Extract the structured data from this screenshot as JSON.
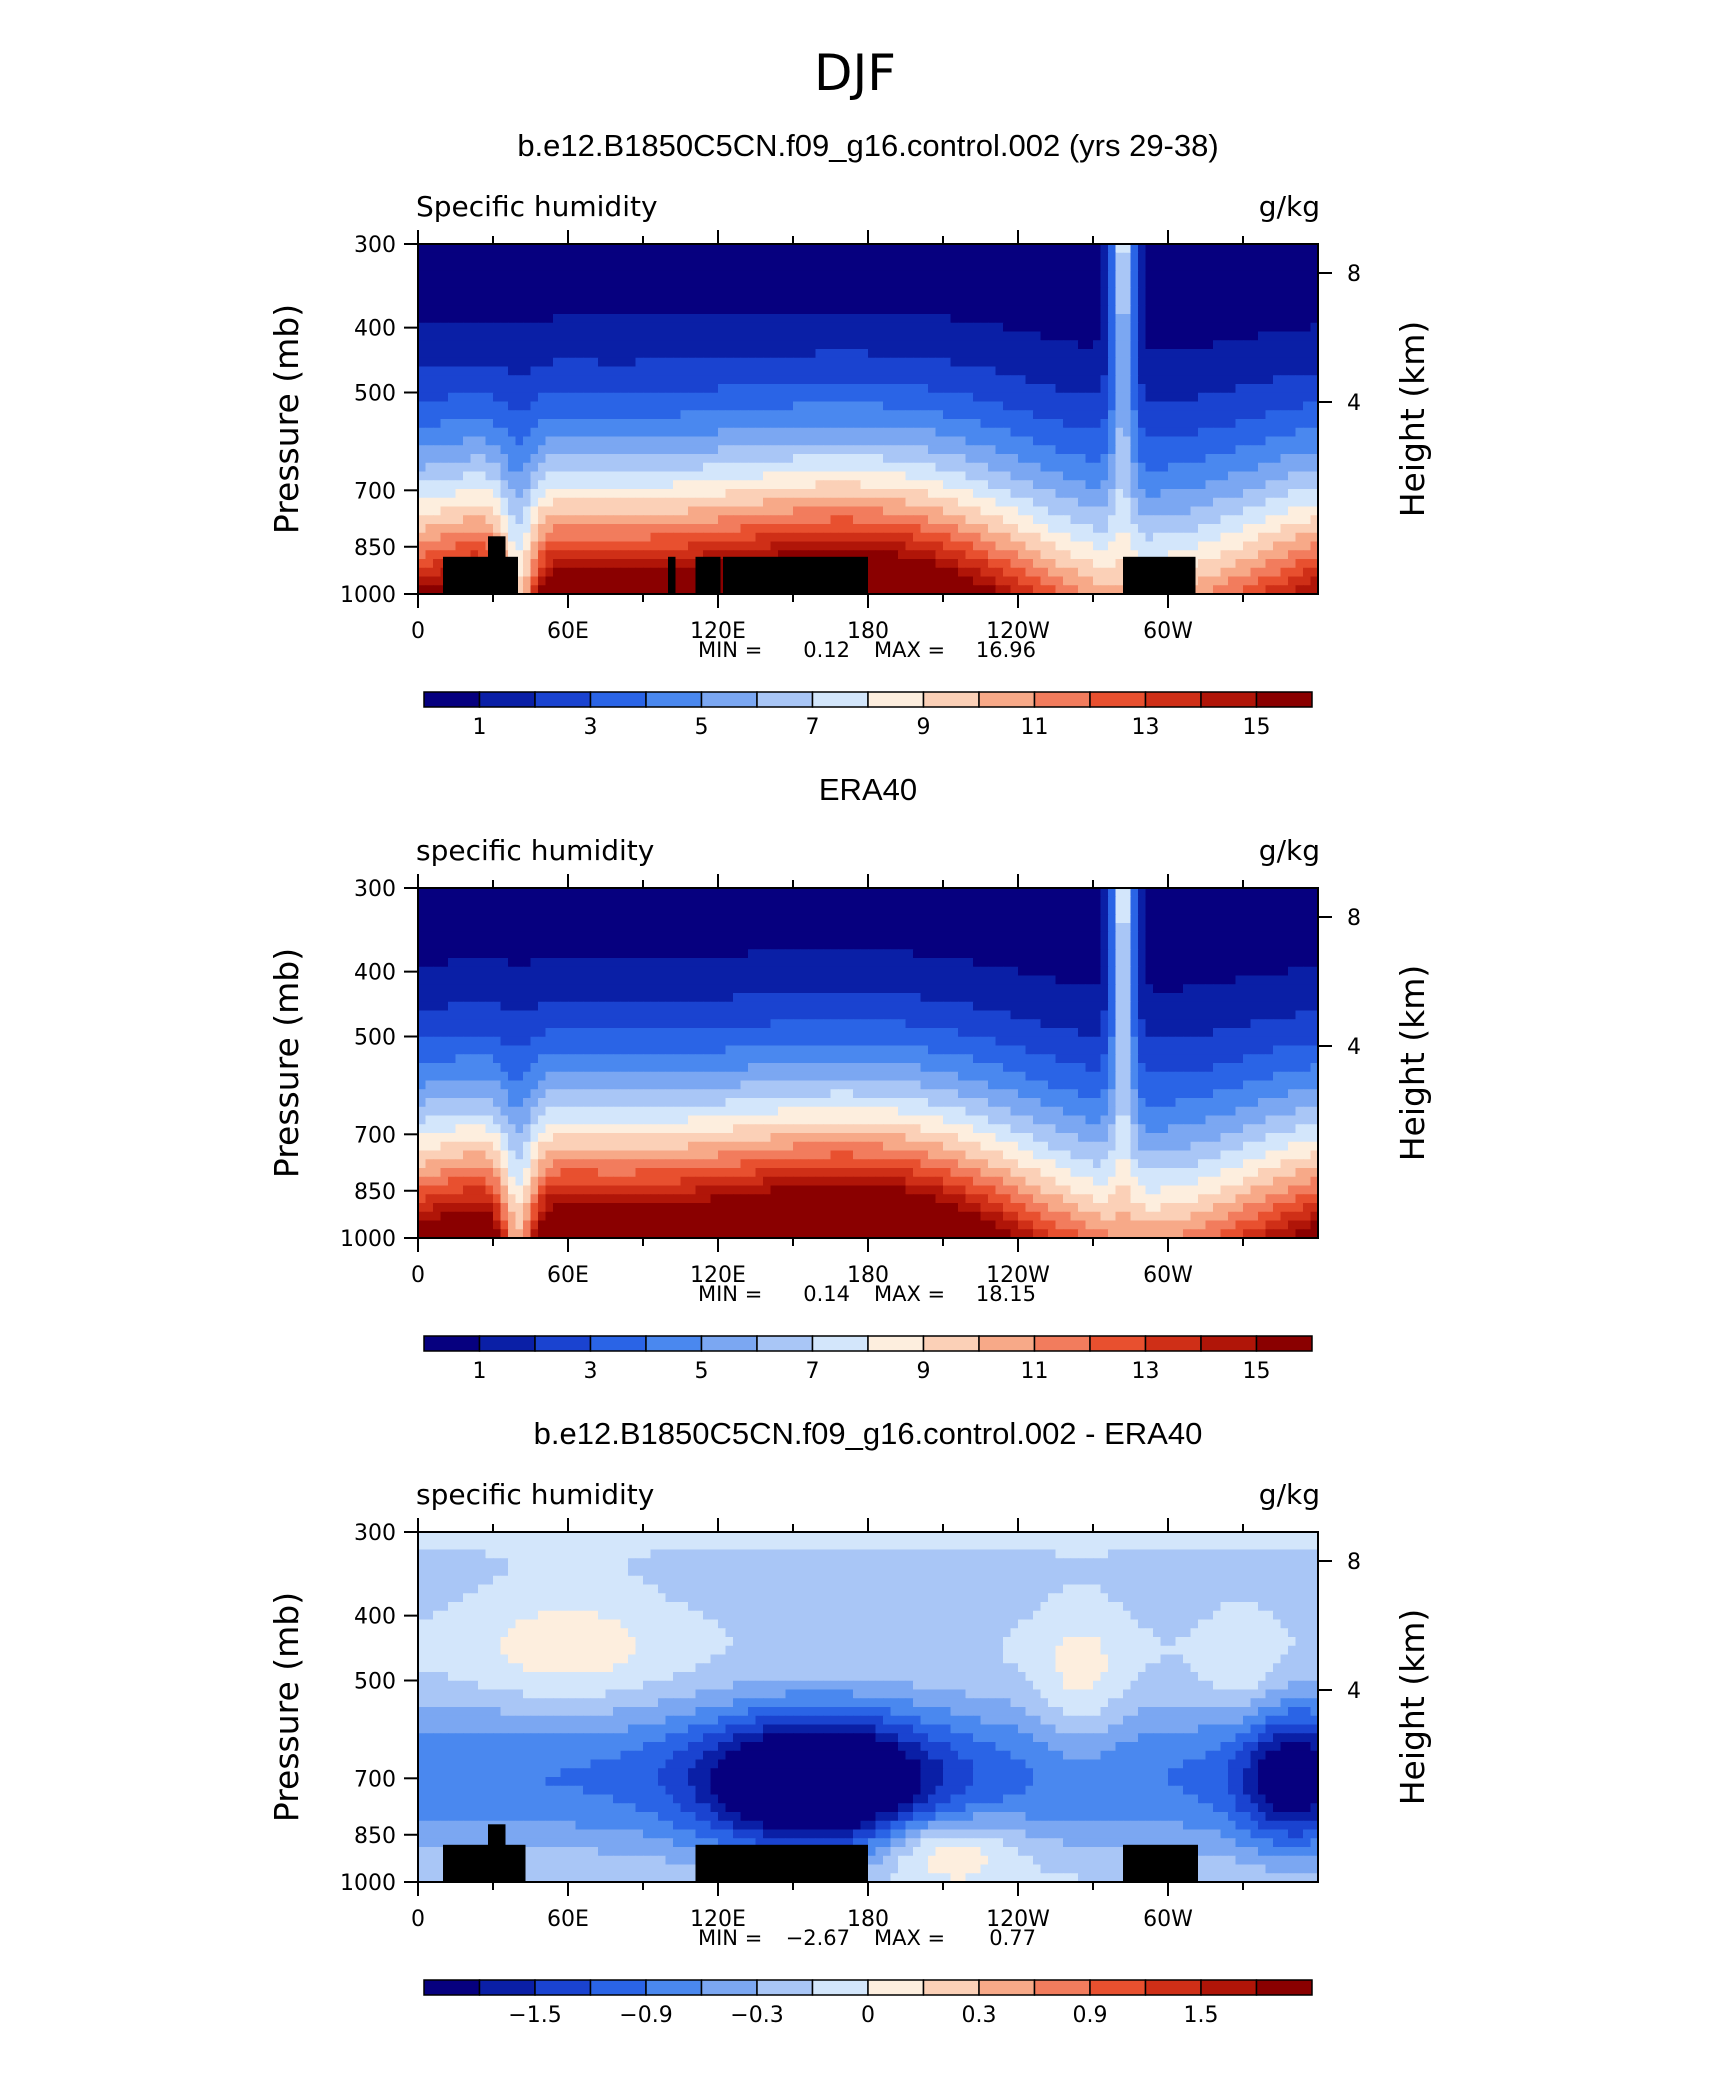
{
  "figure": {
    "title": "DJF"
  },
  "chart_data": [
    {
      "type": "heatmap",
      "title": "b.e12.B1850C5CN.f09_g16.control.002 (yrs 29-38)",
      "left_label": "Specific humidity",
      "right_label": "g/kg",
      "xlabel": "",
      "ylabel": "Pressure (mb)",
      "ylabel_right": "Height (km)",
      "x_ticks": [
        "0",
        "60E",
        "120E",
        "180",
        "120W",
        "60W"
      ],
      "y_ticks": [
        "300",
        "400",
        "500",
        "700",
        "850",
        "1000"
      ],
      "y_right_ticks": [
        "8",
        "4"
      ],
      "y_log_scale": true,
      "ylim": [
        1000,
        300
      ],
      "stats": {
        "min_label": "MIN =",
        "min": "0.12",
        "max_label": "MAX =",
        "max": "16.96"
      },
      "colorbar": {
        "colors": [
          "#06007f",
          "#0a1fa6",
          "#1a43d0",
          "#2a64e6",
          "#4a88ef",
          "#7ba7f2",
          "#a9c6f6",
          "#d3e6fb",
          "#fdeede",
          "#fbd0b7",
          "#f7a988",
          "#f27c5d",
          "#e8502f",
          "#cf2f17",
          "#b01508",
          "#8a0000"
        ],
        "labels": [
          "1",
          "3",
          "5",
          "7",
          "9",
          "11",
          "13",
          "15"
        ]
      },
      "field": {
        "kind": "humidity",
        "seed": 1,
        "min": 0.12,
        "max": 16.96
      }
    },
    {
      "type": "heatmap",
      "title": "ERA40",
      "left_label": "specific humidity",
      "right_label": "g/kg",
      "xlabel": "",
      "ylabel": "Pressure (mb)",
      "ylabel_right": "Height (km)",
      "x_ticks": [
        "0",
        "60E",
        "120E",
        "180",
        "120W",
        "60W"
      ],
      "y_ticks": [
        "300",
        "400",
        "500",
        "700",
        "850",
        "1000"
      ],
      "y_right_ticks": [
        "8",
        "4"
      ],
      "y_log_scale": true,
      "ylim": [
        1000,
        300
      ],
      "stats": {
        "min_label": "MIN =",
        "min": "0.14",
        "max_label": "MAX =",
        "max": "18.15"
      },
      "colorbar": {
        "colors": [
          "#06007f",
          "#0a1fa6",
          "#1a43d0",
          "#2a64e6",
          "#4a88ef",
          "#7ba7f2",
          "#a9c6f6",
          "#d3e6fb",
          "#fdeede",
          "#fbd0b7",
          "#f7a988",
          "#f27c5d",
          "#e8502f",
          "#cf2f17",
          "#b01508",
          "#8a0000"
        ],
        "labels": [
          "1",
          "3",
          "5",
          "7",
          "9",
          "11",
          "13",
          "15"
        ]
      },
      "field": {
        "kind": "humidity",
        "seed": 2,
        "min": 0.14,
        "max": 18.15
      }
    },
    {
      "type": "heatmap",
      "title": "b.e12.B1850C5CN.f09_g16.control.002 - ERA40",
      "left_label": "specific humidity",
      "right_label": "g/kg",
      "xlabel": "",
      "ylabel": "Pressure (mb)",
      "ylabel_right": "Height (km)",
      "x_ticks": [
        "0",
        "60E",
        "120E",
        "180",
        "120W",
        "60W"
      ],
      "y_ticks": [
        "300",
        "400",
        "500",
        "700",
        "850",
        "1000"
      ],
      "y_right_ticks": [
        "8",
        "4"
      ],
      "y_log_scale": true,
      "ylim": [
        1000,
        300
      ],
      "stats": {
        "min_label": "MIN =",
        "min": "−2.67",
        "max_label": "MAX =",
        "max": "0.77"
      },
      "colorbar": {
        "colors": [
          "#06007f",
          "#0a1fa6",
          "#1a43d0",
          "#2a64e6",
          "#4a88ef",
          "#7ba7f2",
          "#a9c6f6",
          "#d3e6fb",
          "#fdeede",
          "#fbd0b7",
          "#f7a988",
          "#f27c5d",
          "#e8502f",
          "#cf2f17",
          "#b01508",
          "#8a0000"
        ],
        "labels": [
          "−1.5",
          "−0.9",
          "−0.3",
          "0",
          "0.3",
          "0.9",
          "1.5"
        ]
      },
      "field": {
        "kind": "difference",
        "seed": 3,
        "min": -2.67,
        "max": 0.77
      }
    }
  ]
}
